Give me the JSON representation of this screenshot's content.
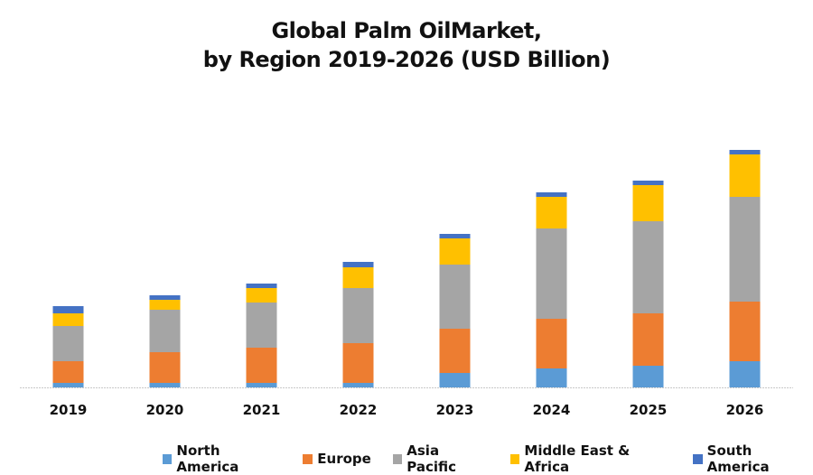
{
  "chart_data": {
    "type": "bar",
    "stacked": true,
    "title": "Global Palm OilMarket,",
    "subtitle": "by Region 2019-2026 (USD Billion)",
    "xlabel": "",
    "ylabel": "",
    "y_axis_visible": false,
    "grid": false,
    "ylim": [
      0,
      30
    ],
    "legend_position": "bottom",
    "categories": [
      "2019",
      "2020",
      "2021",
      "2022",
      "2023",
      "2024",
      "2025",
      "2026"
    ],
    "series": [
      {
        "name": "North America",
        "color": "#5B9BD5",
        "values": [
          0.5,
          0.5,
          0.5,
          0.5,
          1.6,
          2.1,
          2.4,
          2.9
        ]
      },
      {
        "name": "Europe",
        "color": "#ED7D31",
        "values": [
          2.4,
          3.4,
          3.9,
          4.4,
          4.9,
          5.5,
          5.8,
          6.6
        ]
      },
      {
        "name": "Asia Pacific",
        "color": "#A5A5A5",
        "values": [
          3.9,
          4.7,
          5.0,
          6.1,
          7.1,
          10.0,
          10.2,
          11.6
        ]
      },
      {
        "name": "Middle East & Africa",
        "color": "#FFC000",
        "values": [
          1.4,
          1.1,
          1.6,
          2.3,
          2.9,
          3.5,
          4.0,
          4.7
        ]
      },
      {
        "name": "South America",
        "color": "#4472C4",
        "values": [
          0.8,
          0.5,
          0.5,
          0.6,
          0.5,
          0.5,
          0.5,
          0.5
        ]
      }
    ]
  }
}
